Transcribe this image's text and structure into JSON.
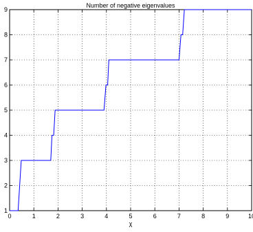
{
  "chart_data": {
    "type": "line",
    "title": "Number of negative eigenvalues",
    "xlabel": "χ",
    "ylabel": "",
    "xlim": [
      0,
      10
    ],
    "ylim": [
      1,
      9
    ],
    "x_ticks": [
      "0",
      "1",
      "2",
      "3",
      "4",
      "5",
      "6",
      "7",
      "8",
      "9",
      "10"
    ],
    "y_ticks": [
      "1",
      "2",
      "3",
      "4",
      "5",
      "6",
      "7",
      "8",
      "9"
    ],
    "grid": true,
    "series": [
      {
        "color": "#0000ff",
        "x": [
          0.0,
          0.35,
          0.48,
          1.7,
          1.75,
          1.82,
          1.88,
          3.9,
          3.98,
          4.05,
          4.1,
          7.0,
          7.08,
          7.15,
          7.22,
          10.0
        ],
        "y": [
          1,
          1,
          3,
          3,
          4,
          4,
          5,
          5,
          6,
          6,
          7,
          7,
          8,
          8,
          9,
          9
        ]
      }
    ]
  }
}
